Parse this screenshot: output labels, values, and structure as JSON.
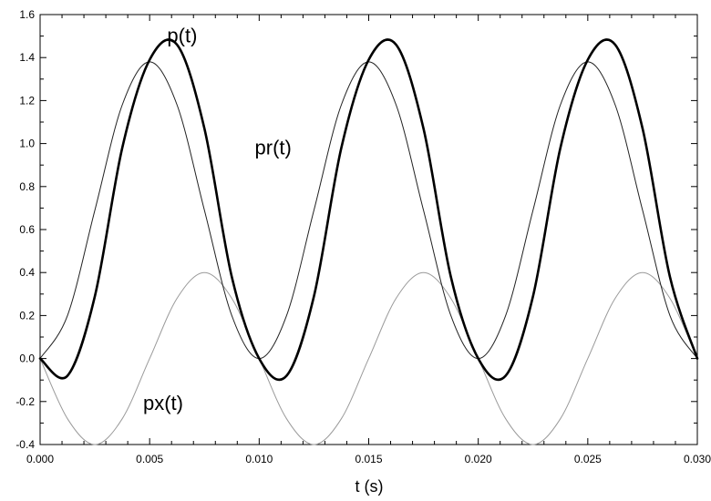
{
  "chart_data": {
    "type": "line",
    "title": "",
    "xlabel": "t (s)",
    "ylabel": "",
    "xlim": [
      0,
      0.03
    ],
    "ylim": [
      -0.4,
      1.6
    ],
    "grid": false,
    "x_ticks": [
      "0.000",
      "0.005",
      "0.010",
      "0.015",
      "0.020",
      "0.025",
      "0.030"
    ],
    "y_ticks": [
      "-0.4",
      "-0.2",
      "0.0",
      "0.2",
      "0.4",
      "0.6",
      "0.8",
      "1.0",
      "1.2",
      "1.4",
      "1.6"
    ],
    "x": [
      0,
      0.00125,
      0.0025,
      0.00375,
      0.005,
      0.00625,
      0.0075,
      0.00875,
      0.01,
      0.01125,
      0.0125,
      0.01375,
      0.015,
      0.01625,
      0.0175,
      0.01875,
      0.02,
      0.02125,
      0.0225,
      0.02375,
      0.025,
      0.02625,
      0.0275,
      0.02875,
      0.03
    ],
    "series": [
      {
        "name": "p(t)",
        "style": "thick",
        "color": "#000000",
        "values": [
          0.0,
          -0.08,
          0.29,
          0.98,
          1.39,
          1.46,
          1.07,
          0.38,
          0.0,
          -0.08,
          0.29,
          0.98,
          1.39,
          1.46,
          1.07,
          0.38,
          0.0,
          -0.08,
          0.29,
          0.98,
          1.39,
          1.46,
          1.07,
          0.38,
          0.0
        ]
      },
      {
        "name": "pr(t)",
        "style": "thin",
        "color": "#222222",
        "values": [
          0.0,
          0.2,
          0.69,
          1.18,
          1.38,
          1.18,
          0.69,
          0.2,
          0.0,
          0.2,
          0.69,
          1.18,
          1.38,
          1.18,
          0.69,
          0.2,
          0.0,
          0.2,
          0.69,
          1.18,
          1.38,
          1.18,
          0.69,
          0.2,
          0.0
        ]
      },
      {
        "name": "px(t)",
        "style": "light",
        "color": "#9a9a9a",
        "values": [
          0.0,
          -0.28,
          -0.4,
          -0.28,
          0.0,
          0.28,
          0.4,
          0.28,
          0.0,
          -0.28,
          -0.4,
          -0.28,
          0.0,
          0.28,
          0.4,
          0.28,
          0.0,
          -0.28,
          -0.4,
          -0.28,
          0.0,
          0.28,
          0.4,
          0.28,
          0.0
        ]
      }
    ],
    "annotations": [
      {
        "text": "p(t)",
        "x": 0.0058,
        "y": 1.47
      },
      {
        "text": "pr(t)",
        "x": 0.0098,
        "y": 0.95
      },
      {
        "text": "px(t)",
        "x": 0.0047,
        "y": -0.24
      }
    ]
  }
}
